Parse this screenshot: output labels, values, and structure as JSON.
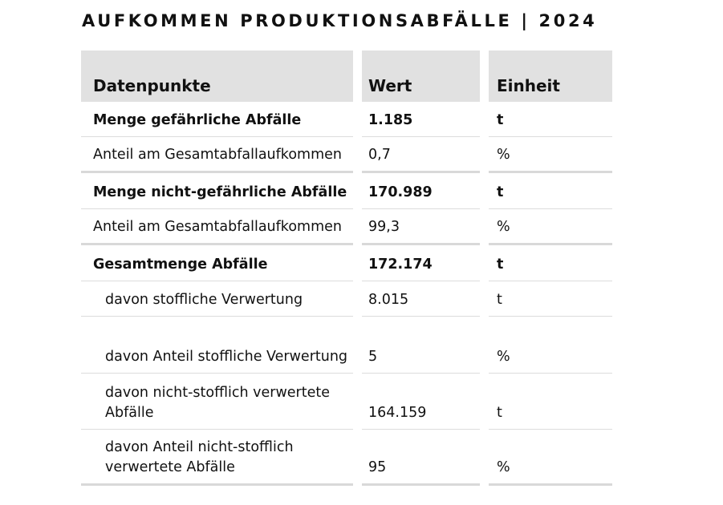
{
  "title": "AUFKOMMEN PRODUKTIONSABFÄLLE | 2024",
  "table": {
    "headers": [
      "Datenpunkte",
      "Wert",
      "Einheit"
    ],
    "rows": [
      {
        "label": "Menge gefährliche Abfälle",
        "value": "1.185",
        "unit": "t"
      },
      {
        "label": "Anteil am Gesamtabfallaufkommen",
        "value": "0,7",
        "unit": "%"
      },
      {
        "label": "Menge nicht-gefährliche Abfälle",
        "value": "170.989",
        "unit": "t"
      },
      {
        "label": "Anteil am Gesamtabfallaufkommen",
        "value": "99,3",
        "unit": "%"
      },
      {
        "label": "Gesamtmenge Abfälle",
        "value": "172.174",
        "unit": "t"
      },
      {
        "label": "davon stoffliche Verwertung",
        "value": "8.015",
        "unit": "t"
      },
      {
        "label": "davon Anteil stoffliche Verwertung",
        "value": "5",
        "unit": "%"
      },
      {
        "label": "davon nicht-stofflich verwertete Abfälle",
        "value": "164.159",
        "unit": "t"
      },
      {
        "label": "davon Anteil nicht-stofflich verwertete Abfälle",
        "value": "95",
        "unit": "%"
      }
    ]
  }
}
